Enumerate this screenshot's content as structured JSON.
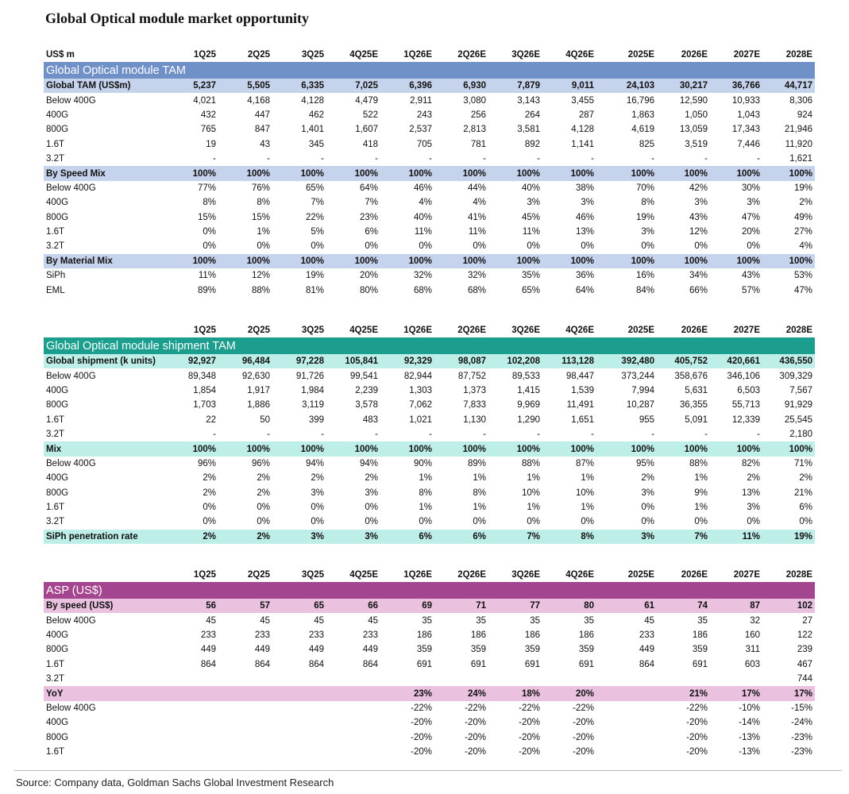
{
  "title": "Global Optical module market opportunity",
  "sections": [
    {
      "header_label": "US$ m",
      "columns": [
        "1Q25",
        "2Q25",
        "3Q25",
        "4Q25E",
        "1Q26E",
        "2Q26E",
        "3Q26E",
        "4Q26E",
        "2025E",
        "2026E",
        "2027E",
        "2028E"
      ],
      "title": "Global Optical module TAM",
      "rows": [
        {
          "label": "Global TAM (US$m)",
          "highlight": true,
          "cells": [
            "5,237",
            "5,505",
            "6,335",
            "7,025",
            "6,396",
            "6,930",
            "7,879",
            "9,011",
            "24,103",
            "30,217",
            "36,766",
            "44,717"
          ]
        },
        {
          "label": "Below 400G",
          "cells": [
            "4,021",
            "4,168",
            "4,128",
            "4,479",
            "2,911",
            "3,080",
            "3,143",
            "3,455",
            "16,796",
            "12,590",
            "10,933",
            "8,306"
          ]
        },
        {
          "label": "400G",
          "cells": [
            "432",
            "447",
            "462",
            "522",
            "243",
            "256",
            "264",
            "287",
            "1,863",
            "1,050",
            "1,043",
            "924"
          ]
        },
        {
          "label": "800G",
          "cells": [
            "765",
            "847",
            "1,401",
            "1,607",
            "2,537",
            "2,813",
            "3,581",
            "4,128",
            "4,619",
            "13,059",
            "17,343",
            "21,946"
          ]
        },
        {
          "label": "1.6T",
          "cells": [
            "19",
            "43",
            "345",
            "418",
            "705",
            "781",
            "892",
            "1,141",
            "825",
            "3,519",
            "7,446",
            "11,920"
          ]
        },
        {
          "label": "3.2T",
          "cells": [
            "-",
            "-",
            "-",
            "-",
            "-",
            "-",
            "-",
            "-",
            "-",
            "-",
            "-",
            "1,621"
          ]
        },
        {
          "label": "By Speed Mix",
          "highlight": true,
          "cells": [
            "100%",
            "100%",
            "100%",
            "100%",
            "100%",
            "100%",
            "100%",
            "100%",
            "100%",
            "100%",
            "100%",
            "100%"
          ]
        },
        {
          "label": "Below 400G",
          "cells": [
            "77%",
            "76%",
            "65%",
            "64%",
            "46%",
            "44%",
            "40%",
            "38%",
            "70%",
            "42%",
            "30%",
            "19%"
          ]
        },
        {
          "label": "400G",
          "cells": [
            "8%",
            "8%",
            "7%",
            "7%",
            "4%",
            "4%",
            "3%",
            "3%",
            "8%",
            "3%",
            "3%",
            "2%"
          ]
        },
        {
          "label": "800G",
          "cells": [
            "15%",
            "15%",
            "22%",
            "23%",
            "40%",
            "41%",
            "45%",
            "46%",
            "19%",
            "43%",
            "47%",
            "49%"
          ]
        },
        {
          "label": "1.6T",
          "cells": [
            "0%",
            "1%",
            "5%",
            "6%",
            "11%",
            "11%",
            "11%",
            "13%",
            "3%",
            "12%",
            "20%",
            "27%"
          ]
        },
        {
          "label": "3.2T",
          "cells": [
            "0%",
            "0%",
            "0%",
            "0%",
            "0%",
            "0%",
            "0%",
            "0%",
            "0%",
            "0%",
            "0%",
            "4%"
          ]
        },
        {
          "label": "By Material Mix",
          "highlight": true,
          "cells": [
            "100%",
            "100%",
            "100%",
            "100%",
            "100%",
            "100%",
            "100%",
            "100%",
            "100%",
            "100%",
            "100%",
            "100%"
          ]
        },
        {
          "label": "SiPh",
          "cells": [
            "11%",
            "12%",
            "19%",
            "20%",
            "32%",
            "32%",
            "35%",
            "36%",
            "16%",
            "34%",
            "43%",
            "53%"
          ]
        },
        {
          "label": "EML",
          "cells": [
            "89%",
            "88%",
            "81%",
            "80%",
            "68%",
            "68%",
            "65%",
            "64%",
            "84%",
            "66%",
            "57%",
            "47%"
          ]
        }
      ]
    },
    {
      "columns": [
        "1Q25",
        "2Q25",
        "3Q25",
        "4Q25E",
        "1Q26E",
        "2Q26E",
        "3Q26E",
        "4Q26E",
        "2025E",
        "2026E",
        "2027E",
        "2028E"
      ],
      "title": "Global Optical module shipment TAM",
      "rows": [
        {
          "label": "Global shipment (k units)",
          "highlight": true,
          "cells": [
            "92,927",
            "96,484",
            "97,228",
            "105,841",
            "92,329",
            "98,087",
            "102,208",
            "113,128",
            "392,480",
            "405,752",
            "420,661",
            "436,550"
          ]
        },
        {
          "label": "Below 400G",
          "cells": [
            "89,348",
            "92,630",
            "91,726",
            "99,541",
            "82,944",
            "87,752",
            "89,533",
            "98,447",
            "373,244",
            "358,676",
            "346,106",
            "309,329"
          ]
        },
        {
          "label": "400G",
          "cells": [
            "1,854",
            "1,917",
            "1,984",
            "2,239",
            "1,303",
            "1,373",
            "1,415",
            "1,539",
            "7,994",
            "5,631",
            "6,503",
            "7,567"
          ]
        },
        {
          "label": "800G",
          "cells": [
            "1,703",
            "1,886",
            "3,119",
            "3,578",
            "7,062",
            "7,833",
            "9,969",
            "11,491",
            "10,287",
            "36,355",
            "55,713",
            "91,929"
          ]
        },
        {
          "label": "1.6T",
          "cells": [
            "22",
            "50",
            "399",
            "483",
            "1,021",
            "1,130",
            "1,290",
            "1,651",
            "955",
            "5,091",
            "12,339",
            "25,545"
          ]
        },
        {
          "label": "3.2T",
          "cells": [
            "-",
            "-",
            "-",
            "-",
            "-",
            "-",
            "-",
            "-",
            "-",
            "-",
            "-",
            "2,180"
          ]
        },
        {
          "label": "Mix",
          "highlight": true,
          "cells": [
            "100%",
            "100%",
            "100%",
            "100%",
            "100%",
            "100%",
            "100%",
            "100%",
            "100%",
            "100%",
            "100%",
            "100%"
          ]
        },
        {
          "label": "Below 400G",
          "cells": [
            "96%",
            "96%",
            "94%",
            "94%",
            "90%",
            "89%",
            "88%",
            "87%",
            "95%",
            "88%",
            "82%",
            "71%"
          ]
        },
        {
          "label": "400G",
          "cells": [
            "2%",
            "2%",
            "2%",
            "2%",
            "1%",
            "1%",
            "1%",
            "1%",
            "2%",
            "1%",
            "2%",
            "2%"
          ]
        },
        {
          "label": "800G",
          "cells": [
            "2%",
            "2%",
            "3%",
            "3%",
            "8%",
            "8%",
            "10%",
            "10%",
            "3%",
            "9%",
            "13%",
            "21%"
          ]
        },
        {
          "label": "1.6T",
          "cells": [
            "0%",
            "0%",
            "0%",
            "0%",
            "1%",
            "1%",
            "1%",
            "1%",
            "0%",
            "1%",
            "3%",
            "6%"
          ]
        },
        {
          "label": "3.2T",
          "cells": [
            "0%",
            "0%",
            "0%",
            "0%",
            "0%",
            "0%",
            "0%",
            "0%",
            "0%",
            "0%",
            "0%",
            "0%"
          ]
        },
        {
          "label": "SiPh penetration rate",
          "highlight": true,
          "cells": [
            "2%",
            "2%",
            "3%",
            "3%",
            "6%",
            "6%",
            "7%",
            "8%",
            "3%",
            "7%",
            "11%",
            "19%"
          ]
        }
      ]
    },
    {
      "columns": [
        "1Q25",
        "2Q25",
        "3Q25",
        "4Q25E",
        "1Q26E",
        "2Q26E",
        "3Q26E",
        "4Q26E",
        "2025E",
        "2026E",
        "2027E",
        "2028E"
      ],
      "title": "ASP (US$)",
      "rows": [
        {
          "label": "By speed (US$)",
          "highlight": true,
          "cells": [
            "56",
            "57",
            "65",
            "66",
            "69",
            "71",
            "77",
            "80",
            "61",
            "74",
            "87",
            "102"
          ]
        },
        {
          "label": "Below 400G",
          "cells": [
            "45",
            "45",
            "45",
            "45",
            "35",
            "35",
            "35",
            "35",
            "45",
            "35",
            "32",
            "27"
          ]
        },
        {
          "label": "400G",
          "cells": [
            "233",
            "233",
            "233",
            "233",
            "186",
            "186",
            "186",
            "186",
            "233",
            "186",
            "160",
            "122"
          ]
        },
        {
          "label": "800G",
          "cells": [
            "449",
            "449",
            "449",
            "449",
            "359",
            "359",
            "359",
            "359",
            "449",
            "359",
            "311",
            "239"
          ]
        },
        {
          "label": "1.6T",
          "cells": [
            "864",
            "864",
            "864",
            "864",
            "691",
            "691",
            "691",
            "691",
            "864",
            "691",
            "603",
            "467"
          ]
        },
        {
          "label": "3.2T",
          "cells": [
            null,
            null,
            null,
            null,
            null,
            null,
            null,
            null,
            null,
            null,
            null,
            "744"
          ]
        },
        {
          "label": "YoY",
          "highlight": true,
          "cells": [
            null,
            null,
            null,
            null,
            "23%",
            "24%",
            "18%",
            "20%",
            null,
            "21%",
            "17%",
            "17%"
          ]
        },
        {
          "label": "Below 400G",
          "cells": [
            null,
            null,
            null,
            null,
            "-22%",
            "-22%",
            "-22%",
            "-22%",
            null,
            "-22%",
            "-10%",
            "-15%"
          ]
        },
        {
          "label": "400G",
          "cells": [
            null,
            null,
            null,
            null,
            "-20%",
            "-20%",
            "-20%",
            "-20%",
            null,
            "-20%",
            "-14%",
            "-24%"
          ]
        },
        {
          "label": "800G",
          "cells": [
            null,
            null,
            null,
            null,
            "-20%",
            "-20%",
            "-20%",
            "-20%",
            null,
            "-20%",
            "-13%",
            "-23%"
          ]
        },
        {
          "label": "1.6T",
          "cells": [
            null,
            null,
            null,
            null,
            "-20%",
            "-20%",
            "-20%",
            "-20%",
            null,
            "-20%",
            "-13%",
            "-23%"
          ]
        }
      ]
    }
  ],
  "source": "Source: Company data, Goldman Sachs Global Investment Research"
}
